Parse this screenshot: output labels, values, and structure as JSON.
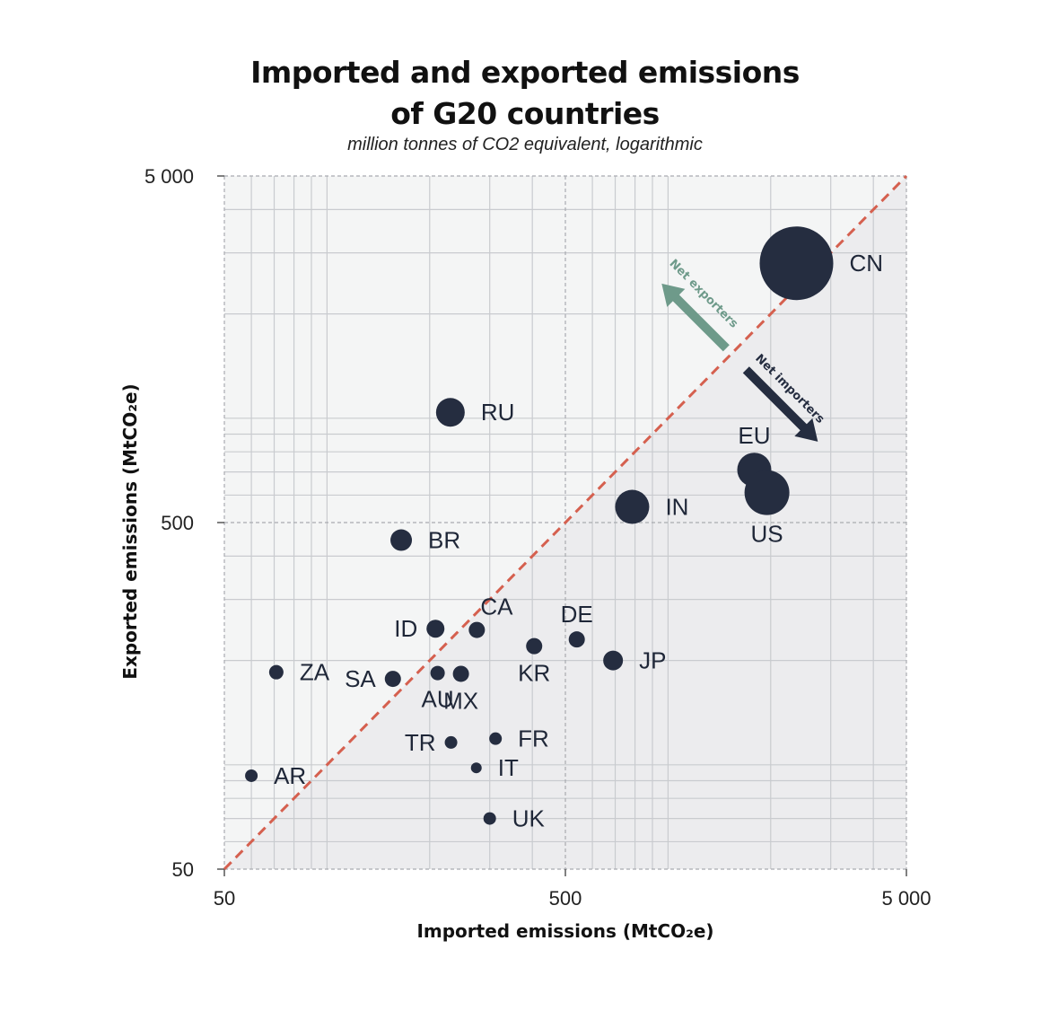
{
  "chart_data": {
    "type": "scatter",
    "title_line1": "Imported and exported emissions",
    "title_line2": "of G20 countries",
    "subtitle": "million tonnes of CO2 equivalent, logarithmic",
    "xlabel": "Imported emissions (MtCO₂e)",
    "ylabel": "Exported emissions (MtCO₂e)",
    "xscale": "log",
    "yscale": "log",
    "xlim": [
      50,
      5000
    ],
    "ylim": [
      50,
      5000
    ],
    "x_ticks": [
      {
        "value": 50,
        "label": "50"
      },
      {
        "value": 500,
        "label": "500"
      },
      {
        "value": 5000,
        "label": "5 000"
      }
    ],
    "y_ticks": [
      {
        "value": 50,
        "label": "50"
      },
      {
        "value": 500,
        "label": "500"
      },
      {
        "value": 5000,
        "label": "5 000"
      }
    ],
    "diagonal": "y = x",
    "annotations": {
      "net_exporters": "Net exporters",
      "net_importers": "Net importers"
    },
    "colors": {
      "point": "#252d40",
      "diagonal": "#d5604f",
      "exporters_arrow": "#6e9a8a",
      "importers_arrow": "#252d40"
    },
    "points": [
      {
        "label": "CN",
        "x": 2380,
        "y": 2800,
        "size": 41,
        "label_pos": "right"
      },
      {
        "label": "RU",
        "x": 230,
        "y": 1040,
        "size": 16,
        "label_pos": "right"
      },
      {
        "label": "EU",
        "x": 1790,
        "y": 710,
        "size": 19,
        "label_pos": "above"
      },
      {
        "label": "US",
        "x": 1950,
        "y": 610,
        "size": 25,
        "label_pos": "below"
      },
      {
        "label": "IN",
        "x": 785,
        "y": 555,
        "size": 19,
        "label_pos": "right"
      },
      {
        "label": "BR",
        "x": 165,
        "y": 445,
        "size": 12,
        "label_pos": "right"
      },
      {
        "label": "CA",
        "x": 275,
        "y": 245,
        "size": 9,
        "label_pos": "above-right"
      },
      {
        "label": "ID",
        "x": 208,
        "y": 247,
        "size": 10,
        "label_pos": "left"
      },
      {
        "label": "DE",
        "x": 540,
        "y": 230,
        "size": 9,
        "label_pos": "above"
      },
      {
        "label": "KR",
        "x": 405,
        "y": 220,
        "size": 9,
        "label_pos": "below"
      },
      {
        "label": "JP",
        "x": 690,
        "y": 200,
        "size": 11,
        "label_pos": "right"
      },
      {
        "label": "ZA",
        "x": 71,
        "y": 185,
        "size": 8,
        "label_pos": "right"
      },
      {
        "label": "SA",
        "x": 156,
        "y": 177,
        "size": 9,
        "label_pos": "left"
      },
      {
        "label": "AU",
        "x": 211,
        "y": 184,
        "size": 8,
        "label_pos": "below"
      },
      {
        "label": "MX",
        "x": 247,
        "y": 183,
        "size": 9,
        "label_pos": "below"
      },
      {
        "label": "TR",
        "x": 231,
        "y": 116,
        "size": 7,
        "label_pos": "left"
      },
      {
        "label": "FR",
        "x": 312,
        "y": 119,
        "size": 7,
        "label_pos": "right"
      },
      {
        "label": "IT",
        "x": 274,
        "y": 98,
        "size": 6,
        "label_pos": "right"
      },
      {
        "label": "AR",
        "x": 60,
        "y": 93,
        "size": 7,
        "label_pos": "right"
      },
      {
        "label": "UK",
        "x": 300,
        "y": 70,
        "size": 7,
        "label_pos": "right"
      }
    ]
  }
}
